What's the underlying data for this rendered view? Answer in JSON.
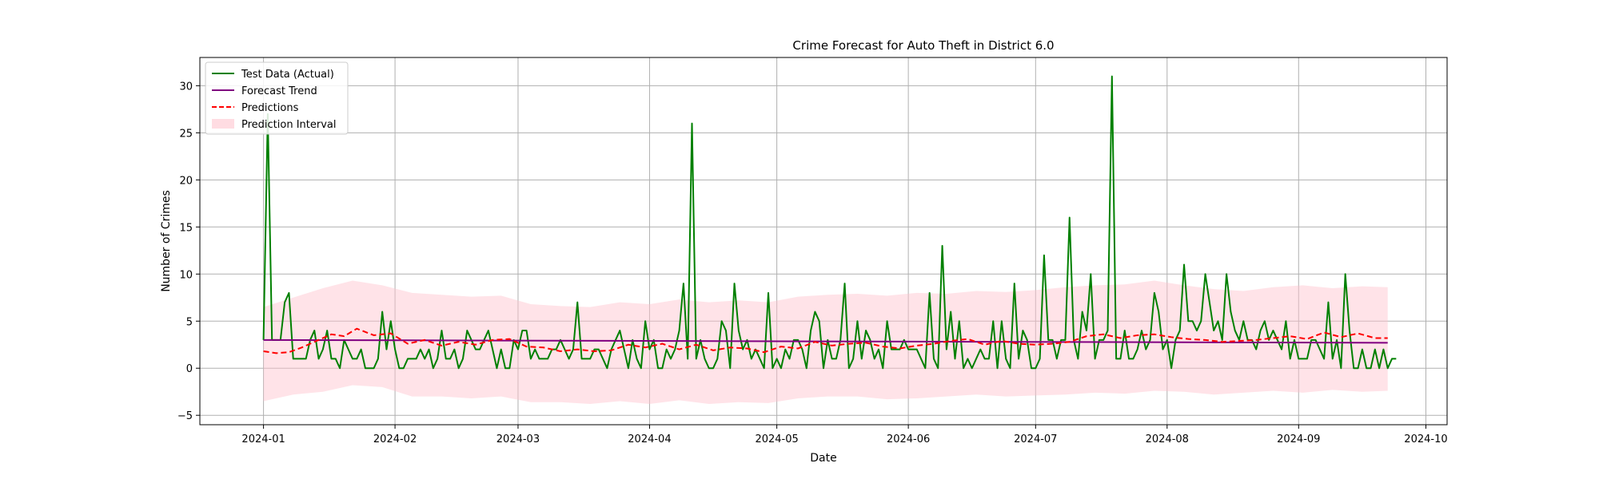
{
  "chart_data": {
    "type": "line",
    "title": "Crime Forecast for Auto Theft in District 6.0",
    "xlabel": "Date",
    "ylabel": "Number of Crimes",
    "xlim": [
      "2023-12-17",
      "2024-10-06"
    ],
    "ylim": [
      -6,
      33
    ],
    "x_ticks": [
      "2024-01-01",
      "2024-02-01",
      "2024-03-01",
      "2024-04-01",
      "2024-05-01",
      "2024-06-01",
      "2024-07-01",
      "2024-08-01",
      "2024-09-01",
      "2024-10-01"
    ],
    "x_tick_labels": [
      "2024-01",
      "2024-02",
      "2024-03",
      "2024-04",
      "2024-05",
      "2024-06",
      "2024-07",
      "2024-08",
      "2024-09",
      "2024-10"
    ],
    "y_ticks": [
      -5,
      0,
      5,
      10,
      15,
      20,
      25,
      30
    ],
    "grid": true,
    "legend_position": "top-left",
    "colors": {
      "actual": "#008000",
      "trend": "#800080",
      "predictions": "#ff0000",
      "interval": "#ffc0cb"
    },
    "series": [
      {
        "name": "Test Data (Actual)",
        "style": "solid",
        "start_date": "2024-01-01",
        "step": "day",
        "values": [
          3,
          27,
          3,
          3,
          3,
          7,
          8,
          1,
          1,
          1,
          1,
          3,
          4,
          1,
          2,
          4,
          1,
          1,
          0,
          3,
          2,
          1,
          1,
          2,
          0,
          0,
          0,
          1,
          6,
          2,
          5,
          2,
          0,
          0,
          1,
          1,
          1,
          2,
          1,
          2,
          0,
          1,
          4,
          1,
          1,
          2,
          0,
          1,
          4,
          3,
          2,
          2,
          3,
          4,
          2,
          0,
          2,
          0,
          0,
          3,
          2,
          4,
          4,
          1,
          2,
          1,
          1,
          1,
          2,
          2,
          3,
          2,
          1,
          2,
          7,
          1,
          1,
          1,
          2,
          2,
          1,
          0,
          2,
          3,
          4,
          2,
          0,
          3,
          1,
          0,
          5,
          2,
          3,
          0,
          0,
          2,
          1,
          2,
          4,
          9,
          1,
          26,
          1,
          3,
          1,
          0,
          0,
          1,
          5,
          4,
          0,
          9,
          4,
          2,
          3,
          1,
          2,
          1,
          0,
          8,
          0,
          1,
          0,
          2,
          1,
          3,
          3,
          2,
          0,
          4,
          6,
          5,
          0,
          3,
          1,
          1,
          3,
          9,
          0,
          1,
          5,
          1,
          4,
          3,
          1,
          2,
          0,
          5,
          2,
          2,
          2,
          3,
          2,
          2,
          2,
          1,
          0,
          8,
          1,
          0,
          13,
          2,
          6,
          1,
          5,
          0,
          1,
          0,
          1,
          2,
          1,
          1,
          5,
          0,
          5,
          1,
          0,
          9,
          1,
          4,
          3,
          0,
          0,
          1,
          12,
          3,
          3,
          1,
          3,
          3,
          16,
          3,
          1,
          6,
          4,
          10,
          1,
          3,
          3,
          4,
          31,
          1,
          1,
          4,
          1,
          1,
          2,
          4,
          2,
          3,
          8,
          6,
          2,
          3,
          0,
          3,
          4,
          11,
          5,
          5,
          4,
          5,
          10,
          7,
          4,
          5,
          3,
          10,
          6,
          4,
          3,
          5,
          3,
          3,
          2,
          4,
          5,
          3,
          4,
          3,
          2,
          5,
          1,
          3,
          1,
          1,
          1,
          3,
          3,
          2,
          1,
          7,
          1,
          3,
          0,
          10,
          4,
          0,
          0,
          2,
          0,
          0,
          2,
          0,
          2,
          0,
          1,
          1
        ]
      },
      {
        "name": "Forecast Trend",
        "style": "solid",
        "x": [
          "2024-01-01",
          "2024-09-22"
        ],
        "values": [
          3.0,
          2.7
        ]
      },
      {
        "name": "Predictions",
        "style": "dashed",
        "x": [
          "2024-01-01",
          "2024-01-04",
          "2024-01-07",
          "2024-01-10",
          "2024-01-14",
          "2024-01-17",
          "2024-01-20",
          "2024-01-23",
          "2024-01-27",
          "2024-01-31",
          "2024-02-04",
          "2024-02-08",
          "2024-02-12",
          "2024-02-16",
          "2024-02-20",
          "2024-02-24",
          "2024-02-28",
          "2024-03-03",
          "2024-03-07",
          "2024-03-11",
          "2024-03-15",
          "2024-03-19",
          "2024-03-23",
          "2024-03-27",
          "2024-03-31",
          "2024-04-04",
          "2024-04-08",
          "2024-04-12",
          "2024-04-16",
          "2024-04-20",
          "2024-04-24",
          "2024-04-28",
          "2024-05-02",
          "2024-05-06",
          "2024-05-10",
          "2024-05-14",
          "2024-05-18",
          "2024-05-22",
          "2024-05-26",
          "2024-05-30",
          "2024-06-03",
          "2024-06-07",
          "2024-06-11",
          "2024-06-15",
          "2024-06-19",
          "2024-06-23",
          "2024-06-27",
          "2024-07-01",
          "2024-07-05",
          "2024-07-09",
          "2024-07-13",
          "2024-07-17",
          "2024-07-21",
          "2024-07-25",
          "2024-07-29",
          "2024-08-02",
          "2024-08-06",
          "2024-08-10",
          "2024-08-14",
          "2024-08-18",
          "2024-08-22",
          "2024-08-26",
          "2024-08-30",
          "2024-09-03",
          "2024-09-07",
          "2024-09-11",
          "2024-09-15",
          "2024-09-19",
          "2024-09-22"
        ],
        "values": [
          1.8,
          1.6,
          1.7,
          2.2,
          3.0,
          3.6,
          3.4,
          4.2,
          3.5,
          3.7,
          2.6,
          3.0,
          2.4,
          2.8,
          2.5,
          3.0,
          3.1,
          2.3,
          2.2,
          1.8,
          2.0,
          1.8,
          1.9,
          2.5,
          2.2,
          2.6,
          2.0,
          2.5,
          1.9,
          2.2,
          2.1,
          1.7,
          2.3,
          2.1,
          2.8,
          2.4,
          2.6,
          2.7,
          2.3,
          2.1,
          2.4,
          2.6,
          2.9,
          3.1,
          2.5,
          2.9,
          2.6,
          2.5,
          2.6,
          2.8,
          3.4,
          3.6,
          3.2,
          3.5,
          3.6,
          3.3,
          3.1,
          3.0,
          2.8,
          2.9,
          3.0,
          3.2,
          3.4,
          3.1,
          3.8,
          3.3,
          3.7,
          3.2,
          3.2
        ]
      },
      {
        "name": "Prediction Interval",
        "style": "band",
        "x": [
          "2024-01-01",
          "2024-01-08",
          "2024-01-15",
          "2024-01-22",
          "2024-01-29",
          "2024-02-05",
          "2024-02-12",
          "2024-02-19",
          "2024-02-26",
          "2024-03-04",
          "2024-03-11",
          "2024-03-18",
          "2024-03-25",
          "2024-04-01",
          "2024-04-08",
          "2024-04-15",
          "2024-04-22",
          "2024-04-29",
          "2024-05-06",
          "2024-05-13",
          "2024-05-20",
          "2024-05-27",
          "2024-06-03",
          "2024-06-10",
          "2024-06-17",
          "2024-06-24",
          "2024-07-01",
          "2024-07-08",
          "2024-07-15",
          "2024-07-22",
          "2024-07-29",
          "2024-08-05",
          "2024-08-12",
          "2024-08-19",
          "2024-08-26",
          "2024-09-02",
          "2024-09-09",
          "2024-09-16",
          "2024-09-22"
        ],
        "lower": [
          -3.5,
          -2.8,
          -2.5,
          -1.8,
          -2.0,
          -3.0,
          -3.0,
          -3.2,
          -3.0,
          -3.6,
          -3.6,
          -3.8,
          -3.5,
          -3.8,
          -3.4,
          -3.8,
          -3.6,
          -3.7,
          -3.2,
          -3.0,
          -3.0,
          -3.3,
          -3.2,
          -3.0,
          -2.8,
          -3.0,
          -2.9,
          -2.8,
          -2.6,
          -2.7,
          -2.4,
          -2.5,
          -2.8,
          -2.6,
          -2.4,
          -2.6,
          -2.3,
          -2.5,
          -2.4
        ],
        "upper": [
          6.5,
          7.5,
          8.5,
          9.3,
          8.8,
          8.0,
          7.8,
          7.6,
          7.7,
          6.8,
          6.6,
          6.5,
          7.0,
          6.8,
          7.3,
          7.0,
          7.2,
          7.0,
          7.6,
          7.8,
          7.9,
          7.7,
          8.0,
          7.9,
          8.2,
          8.1,
          8.3,
          8.6,
          8.8,
          8.9,
          9.3,
          8.8,
          8.4,
          8.2,
          8.6,
          8.8,
          8.5,
          8.7,
          8.6
        ]
      }
    ]
  }
}
